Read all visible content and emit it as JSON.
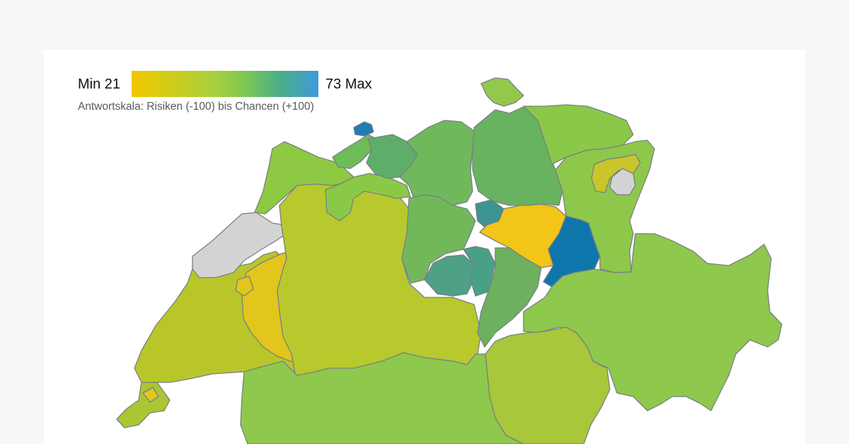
{
  "legend": {
    "min_label": "Min 21",
    "max_label": "73 Max",
    "caption": "Antwortskala: Risiken (-100) bis Chancen (+100)",
    "gradient_colors": [
      "#f2c500",
      "#a6d040",
      "#49ad8a",
      "#3f9adb"
    ]
  },
  "colors": {
    "page_background": "#f6f7f9",
    "card_background": "#ffffff",
    "no_data": "#d3d3d3",
    "border": "#7a7f83"
  }
}
